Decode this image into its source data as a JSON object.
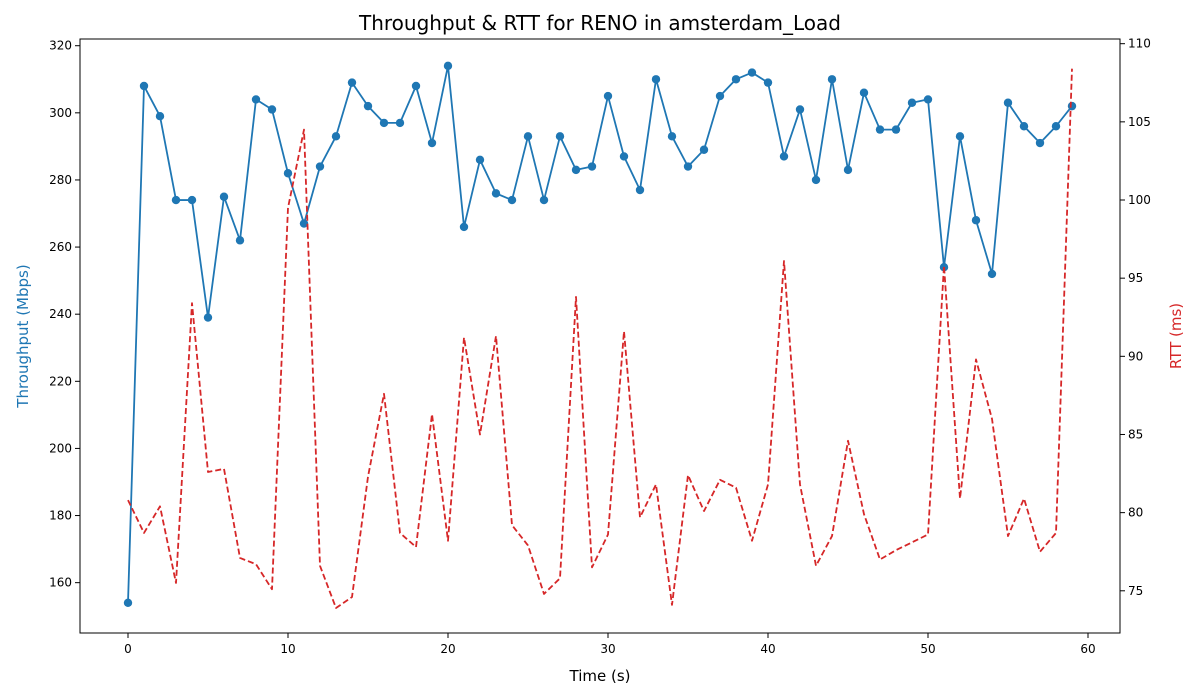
{
  "chart_data": {
    "type": "line",
    "title": "Throughput & RTT for RENO in amsterdam_Load",
    "xlabel": "Time (s)",
    "ylabel_left": "Throughput (Mbps)",
    "ylabel_right": "RTT (ms)",
    "xlim": [
      -3,
      62
    ],
    "ylim_left": [
      145,
      322
    ],
    "ylim_right": [
      72.3,
      110.3
    ],
    "x_ticks": [
      0,
      10,
      20,
      30,
      40,
      50,
      60
    ],
    "y_left_ticks": [
      160,
      180,
      200,
      220,
      240,
      260,
      280,
      300,
      320
    ],
    "y_right_ticks": [
      75,
      80,
      85,
      90,
      95,
      100,
      105,
      110
    ],
    "grid": false,
    "colors": {
      "throughput": "#1f77b4",
      "rtt": "#d62728"
    },
    "x": [
      0,
      1,
      2,
      3,
      4,
      5,
      6,
      7,
      8,
      9,
      10,
      11,
      12,
      13,
      14,
      15,
      16,
      17,
      18,
      19,
      20,
      21,
      22,
      23,
      24,
      25,
      26,
      27,
      28,
      29,
      30,
      31,
      32,
      33,
      34,
      35,
      36,
      37,
      38,
      39,
      40,
      41,
      42,
      43,
      44,
      45,
      46,
      47,
      48,
      49,
      50,
      51,
      52,
      53,
      54,
      55,
      56,
      57,
      58,
      59
    ],
    "series": [
      {
        "axis": "left",
        "style": "solid-with-markers",
        "values": [
          154,
          308,
          299,
          274,
          274,
          239,
          275,
          262,
          304,
          301,
          282,
          267,
          284,
          293,
          309,
          302,
          297,
          297,
          308,
          291,
          314,
          266,
          286,
          276,
          274,
          293,
          274,
          293,
          283,
          284,
          305,
          287,
          277,
          310,
          293,
          284,
          289,
          305,
          310,
          312,
          309,
          287,
          301,
          280,
          310,
          283,
          306,
          295,
          295,
          303,
          304,
          254,
          293,
          268,
          252,
          303,
          296,
          291,
          296,
          302
        ]
      },
      {
        "axis": "right",
        "style": "dashed",
        "values": [
          80.8,
          78.7,
          80.4,
          75.5,
          93.4,
          82.6,
          82.8,
          77.1,
          76.7,
          75.1,
          99.5,
          104.5,
          76.6,
          73.9,
          74.6,
          82.3,
          87.6,
          78.7,
          77.8,
          86.3,
          78.2,
          91.2,
          85.0,
          91.3,
          79.2,
          77.9,
          74.8,
          75.8,
          93.8,
          76.5,
          78.6,
          91.6,
          79.7,
          81.8,
          74.1,
          82.4,
          80.1,
          82.1,
          81.6,
          78.2,
          81.8,
          96.1,
          81.8,
          76.6,
          78.5,
          84.6,
          79.9,
          77.0,
          77.6,
          78.1,
          78.6,
          95.8,
          80.9,
          89.8,
          86.0,
          78.5,
          80.9,
          77.5,
          78.7,
          108.4
        ]
      }
    ]
  }
}
